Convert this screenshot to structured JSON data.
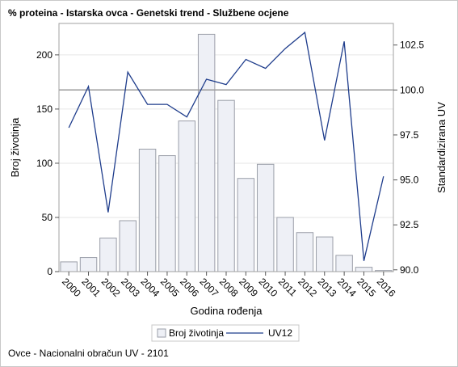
{
  "chart_data": {
    "type": "bar+line",
    "title": "% proteina - Istarska ovca - Genetski trend - Službene ocjene",
    "xlabel": "Godina rođenja",
    "ylabel": "Broj životinja",
    "y2label": "Standardizirana UV",
    "categories": [
      "2000",
      "2001",
      "2002",
      "2003",
      "2004",
      "2005",
      "2006",
      "2007",
      "2008",
      "2009",
      "2010",
      "2011",
      "2012",
      "2013",
      "2014",
      "2015",
      "2016"
    ],
    "series": [
      {
        "name": "Broj životinja",
        "type": "bar",
        "axis": "left",
        "values": [
          9,
          13,
          31,
          47,
          113,
          107,
          139,
          219,
          158,
          86,
          99,
          50,
          36,
          32,
          15,
          4,
          1
        ]
      },
      {
        "name": "UV12",
        "type": "line",
        "axis": "right",
        "values": [
          97.9,
          100.2,
          93.2,
          101.0,
          99.2,
          99.2,
          98.5,
          100.6,
          100.3,
          101.7,
          101.2,
          102.3,
          103.2,
          97.2,
          102.7,
          90.5,
          95.2
        ]
      }
    ],
    "ylim": [
      0,
      229
    ],
    "yticks": [
      0,
      50,
      100,
      150,
      200
    ],
    "y2lim": [
      89.9,
      103.7
    ],
    "y2ticks": [
      "90.0",
      "92.5",
      "95.0",
      "97.5",
      "100.0",
      "102.5"
    ],
    "reference_line_y2": 100.0,
    "legend": {
      "placement": "bottom",
      "entries": [
        "Broj životinja",
        "UV12"
      ]
    },
    "colors": {
      "bar_fill": "#eef0f6",
      "bar_stroke": "#9a9ea8",
      "line": "#1f3d8c",
      "reference": "#9a9a9a",
      "grid": "#e6e6e6"
    },
    "grid": true
  },
  "footnote": "Ovce - Nacionalni obračun UV - 2101"
}
